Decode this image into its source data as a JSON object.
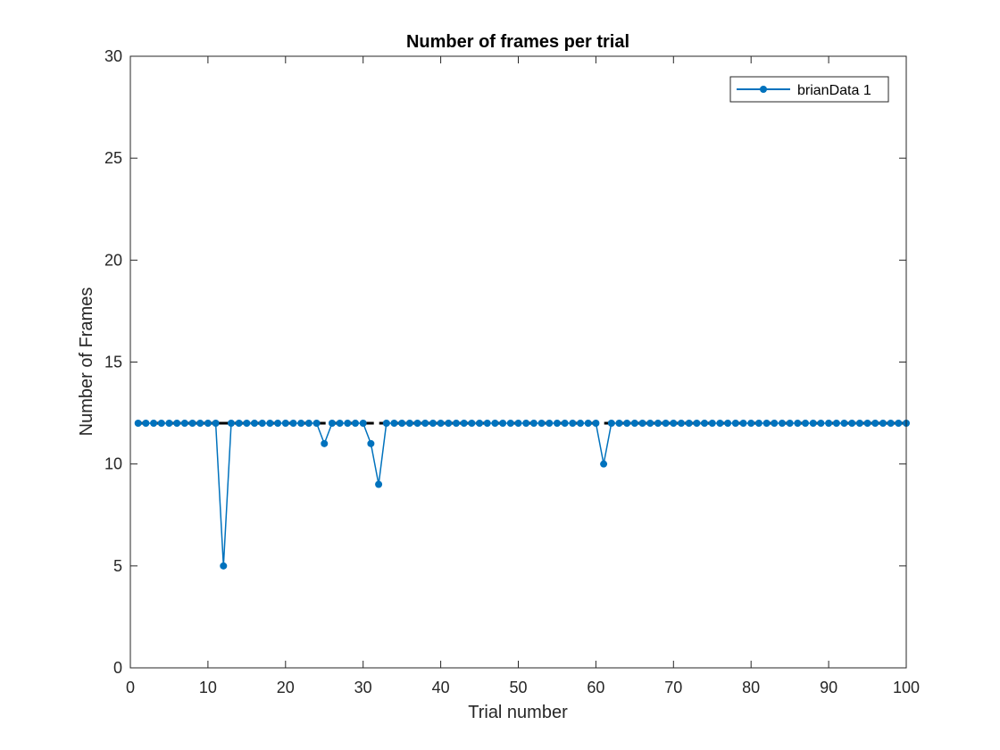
{
  "chart_data": {
    "type": "line",
    "title": "Number of frames per trial",
    "xlabel": "Trial number",
    "ylabel": "Number of Frames",
    "xlim": [
      0,
      100
    ],
    "ylim": [
      0,
      30
    ],
    "xticks": [
      0,
      10,
      20,
      30,
      40,
      50,
      60,
      70,
      80,
      90,
      100
    ],
    "yticks": [
      0,
      5,
      10,
      15,
      20,
      25,
      30
    ],
    "grid": false,
    "legend_position": "top-right",
    "reference_line": {
      "y": 12,
      "style": "dashed",
      "color": "#000000"
    },
    "series": [
      {
        "name": "brianData 1",
        "color": "#0072BD",
        "marker": "circle",
        "x": [
          1,
          2,
          3,
          4,
          5,
          6,
          7,
          8,
          9,
          10,
          11,
          12,
          13,
          14,
          15,
          16,
          17,
          18,
          19,
          20,
          21,
          22,
          23,
          24,
          25,
          26,
          27,
          28,
          29,
          30,
          31,
          32,
          33,
          34,
          35,
          36,
          37,
          38,
          39,
          40,
          41,
          42,
          43,
          44,
          45,
          46,
          47,
          48,
          49,
          50,
          51,
          52,
          53,
          54,
          55,
          56,
          57,
          58,
          59,
          60,
          61,
          62,
          63,
          64,
          65,
          66,
          67,
          68,
          69,
          70,
          71,
          72,
          73,
          74,
          75,
          76,
          77,
          78,
          79,
          80,
          81,
          82,
          83,
          84,
          85,
          86,
          87,
          88,
          89,
          90,
          91,
          92,
          93,
          94,
          95,
          96,
          97,
          98,
          99,
          100
        ],
        "values": [
          12,
          12,
          12,
          12,
          12,
          12,
          12,
          12,
          12,
          12,
          12,
          5,
          12,
          12,
          12,
          12,
          12,
          12,
          12,
          12,
          12,
          12,
          12,
          12,
          11,
          12,
          12,
          12,
          12,
          12,
          11,
          9,
          12,
          12,
          12,
          12,
          12,
          12,
          12,
          12,
          12,
          12,
          12,
          12,
          12,
          12,
          12,
          12,
          12,
          12,
          12,
          12,
          12,
          12,
          12,
          12,
          12,
          12,
          12,
          12,
          10,
          12,
          12,
          12,
          12,
          12,
          12,
          12,
          12,
          12,
          12,
          12,
          12,
          12,
          12,
          12,
          12,
          12,
          12,
          12,
          12,
          12,
          12,
          12,
          12,
          12,
          12,
          12,
          12,
          12,
          12,
          12,
          12,
          12,
          12,
          12,
          12,
          12,
          12,
          12
        ]
      }
    ]
  }
}
